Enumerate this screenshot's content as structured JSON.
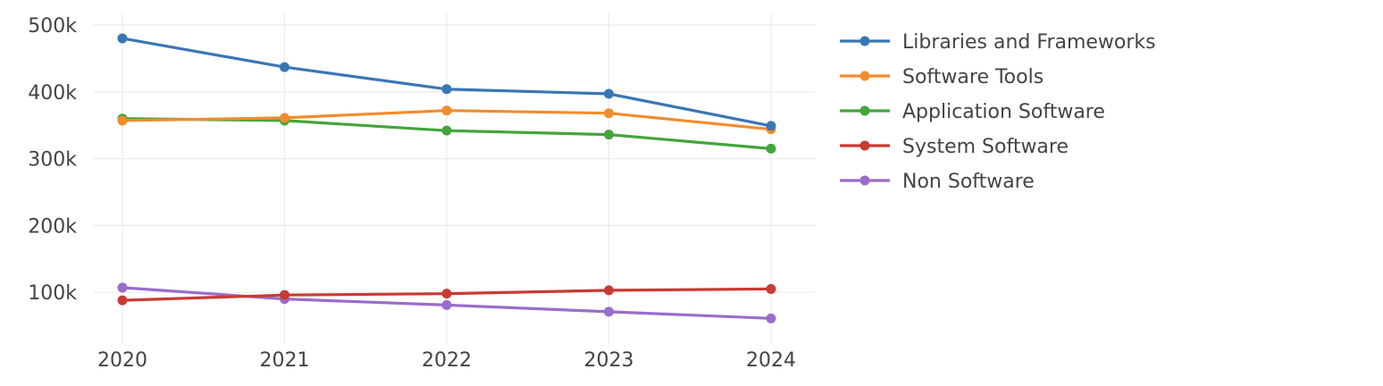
{
  "chart_data": {
    "type": "line",
    "x": [
      "2020",
      "2021",
      "2022",
      "2023",
      "2024"
    ],
    "ylim": [
      20000,
      510000
    ],
    "yticks": [
      100000,
      200000,
      300000,
      400000,
      500000
    ],
    "ytick_labels": [
      "100k",
      "200k",
      "300k",
      "400k",
      "500k"
    ],
    "grid": true,
    "legend_position": "right",
    "series": [
      {
        "name": "Libraries and Frameworks",
        "color": "#3a76b5",
        "values": [
          480000,
          437000,
          404000,
          397000,
          349000
        ]
      },
      {
        "name": "Software Tools",
        "color": "#f18c2c",
        "values": [
          357000,
          361000,
          372000,
          368000,
          344000
        ]
      },
      {
        "name": "Application Software",
        "color": "#43a53c",
        "values": [
          360000,
          357000,
          342000,
          336000,
          315000
        ]
      },
      {
        "name": "System Software",
        "color": "#c83b32",
        "values": [
          88000,
          96000,
          98000,
          103000,
          105000
        ]
      },
      {
        "name": "Non Software",
        "color": "#9a6ccb",
        "values": [
          107000,
          90000,
          81000,
          71000,
          61000
        ]
      }
    ]
  }
}
